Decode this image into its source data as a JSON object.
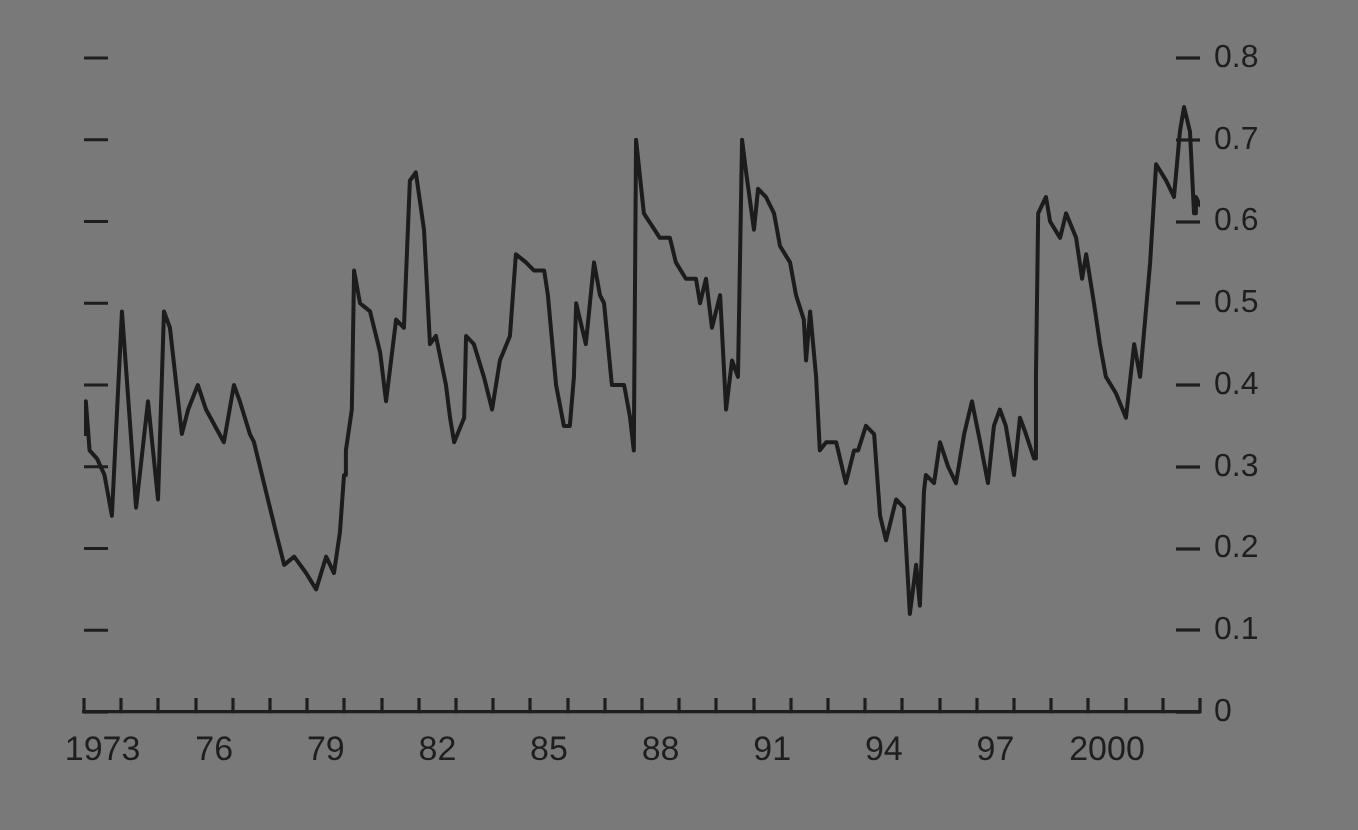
{
  "chart_data": {
    "type": "line",
    "color": "#1c1c1c",
    "x": [
      1972.5,
      1972.55,
      1972.65,
      1972.85,
      1973.05,
      1973.25,
      1973.52,
      1973.9,
      1974.22,
      1974.49,
      1974.65,
      1974.81,
      1975.13,
      1975.3,
      1975.56,
      1975.78,
      1976.26,
      1976.53,
      1976.69,
      1976.96,
      1977.07,
      1977.39,
      1977.66,
      1977.88,
      1978.15,
      1978.47,
      1978.74,
      1979.01,
      1979.22,
      1979.38,
      1979.49,
      1979.54,
      1979.7,
      1979.76,
      1979.92,
      1980.19,
      1980.46,
      1980.62,
      1980.89,
      1981.1,
      1981.26,
      1981.42,
      1981.64,
      1981.8,
      1981.96,
      1982.23,
      1982.34,
      1982.45,
      1982.72,
      1982.77,
      1982.98,
      1983.25,
      1983.47,
      1983.68,
      1983.95,
      1984.11,
      1984.38,
      1984.6,
      1984.87,
      1984.97,
      1985.19,
      1985.4,
      1985.56,
      1985.67,
      1985.73,
      1985.99,
      1986.21,
      1986.37,
      1986.48,
      1986.69,
      1987.02,
      1987.18,
      1987.28,
      1987.34,
      1987.55,
      1987.98,
      1988.25,
      1988.41,
      1988.68,
      1988.95,
      1989.06,
      1989.22,
      1989.38,
      1989.6,
      1989.76,
      1989.92,
      1990.08,
      1990.19,
      1990.3,
      1990.51,
      1990.62,
      1990.83,
      1991.05,
      1991.21,
      1991.48,
      1991.64,
      1991.85,
      1991.91,
      1992.02,
      1992.18,
      1992.28,
      1992.45,
      1992.72,
      1992.98,
      1993.2,
      1993.31,
      1993.52,
      1993.74,
      1993.9,
      1994.06,
      1994.33,
      1994.54,
      1994.7,
      1994.87,
      1994.97,
      1995.08,
      1995.13,
      1995.35,
      1995.51,
      1995.73,
      1995.94,
      1996.16,
      1996.37,
      1996.59,
      1996.8,
      1996.96,
      1997.12,
      1997.28,
      1997.5,
      1997.66,
      1997.82,
      1998.04,
      1998.09,
      1998.15,
      1998.36,
      1998.47,
      1998.74,
      1998.9,
      1999.17,
      1999.33,
      1999.44,
      1999.65,
      1999.81,
      1999.97,
      2000.24,
      2000.51,
      2000.73,
      2000.89,
      2001.16,
      2001.32,
      2001.59,
      2001.8,
      2001.96,
      2002.07,
      2002.23,
      2002.34,
      2002.39,
      2002.5
    ],
    "values": [
      0.34,
      0.38,
      0.32,
      0.31,
      0.29,
      0.24,
      0.49,
      0.25,
      0.38,
      0.26,
      0.49,
      0.47,
      0.34,
      0.37,
      0.4,
      0.37,
      0.33,
      0.4,
      0.38,
      0.34,
      0.33,
      0.27,
      0.22,
      0.18,
      0.19,
      0.17,
      0.15,
      0.19,
      0.17,
      0.22,
      0.29,
      0.32,
      0.37,
      0.54,
      0.5,
      0.49,
      0.44,
      0.38,
      0.48,
      0.47,
      0.65,
      0.66,
      0.59,
      0.45,
      0.46,
      0.4,
      0.36,
      0.33,
      0.36,
      0.46,
      0.45,
      0.41,
      0.37,
      0.43,
      0.46,
      0.56,
      0.55,
      0.54,
      0.54,
      0.51,
      0.4,
      0.35,
      0.35,
      0.41,
      0.5,
      0.45,
      0.55,
      0.51,
      0.5,
      0.4,
      0.4,
      0.36,
      0.32,
      0.7,
      0.61,
      0.58,
      0.58,
      0.55,
      0.53,
      0.53,
      0.5,
      0.53,
      0.47,
      0.51,
      0.37,
      0.43,
      0.41,
      0.7,
      0.66,
      0.59,
      0.64,
      0.63,
      0.61,
      0.57,
      0.55,
      0.51,
      0.48,
      0.43,
      0.49,
      0.41,
      0.32,
      0.33,
      0.33,
      0.28,
      0.32,
      0.32,
      0.35,
      0.34,
      0.24,
      0.21,
      0.26,
      0.25,
      0.12,
      0.18,
      0.13,
      0.27,
      0.29,
      0.28,
      0.33,
      0.3,
      0.28,
      0.34,
      0.38,
      0.33,
      0.28,
      0.35,
      0.37,
      0.35,
      0.29,
      0.36,
      0.34,
      0.31,
      0.41,
      0.61,
      0.63,
      0.6,
      0.58,
      0.61,
      0.58,
      0.53,
      0.56,
      0.5,
      0.45,
      0.41,
      0.39,
      0.36,
      0.45,
      0.41,
      0.55,
      0.67,
      0.65,
      0.63,
      0.71,
      0.74,
      0.71,
      0.61,
      0.63,
      0.62
    ],
    "xlim": [
      1972.5,
      2002.5
    ],
    "xticks": [
      {
        "value": 1972.5,
        "label": null
      },
      1973,
      {
        "value": 1973.5,
        "label": null
      },
      {
        "value": 1974.5,
        "label": null
      },
      {
        "value": 1975.5,
        "label": null
      },
      {
        "value": 1976,
        "label": "76"
      },
      {
        "value": 1976.5,
        "label": null
      },
      {
        "value": 1977.5,
        "label": null
      },
      {
        "value": 1978.5,
        "label": null
      },
      {
        "value": 1979,
        "label": "79"
      },
      {
        "value": 1979.5,
        "label": null
      },
      {
        "value": 1980.5,
        "label": null
      },
      {
        "value": 1981.5,
        "label": null
      },
      {
        "value": 1982,
        "label": "82"
      },
      {
        "value": 1982.5,
        "label": null
      },
      {
        "value": 1983.5,
        "label": null
      },
      {
        "value": 1984.5,
        "label": null
      },
      {
        "value": 1985,
        "label": "85"
      },
      {
        "value": 1985.5,
        "label": null
      },
      {
        "value": 1986.5,
        "label": null
      },
      {
        "value": 1987.5,
        "label": null
      },
      {
        "value": 1988,
        "label": "88"
      },
      {
        "value": 1988.5,
        "label": null
      },
      {
        "value": 1989.5,
        "label": null
      },
      {
        "value": 1990.5,
        "label": null
      },
      {
        "value": 1991,
        "label": "91"
      },
      {
        "value": 1991.5,
        "label": null
      },
      {
        "value": 1992.5,
        "label": null
      },
      {
        "value": 1993.5,
        "label": null
      },
      {
        "value": 1994,
        "label": "94"
      },
      {
        "value": 1994.5,
        "label": null
      },
      {
        "value": 1995.5,
        "label": null
      },
      {
        "value": 1996.5,
        "label": null
      },
      {
        "value": 1997,
        "label": "97"
      },
      {
        "value": 1997.5,
        "label": null
      },
      {
        "value": 1998.5,
        "label": null
      },
      {
        "value": 1999.5,
        "label": null
      },
      2000,
      {
        "value": 2000.5,
        "label": null
      },
      {
        "value": 2001.5,
        "label": null
      },
      {
        "value": 2002.5,
        "label": null
      }
    ],
    "ylim": [
      0,
      0.8
    ],
    "yticks": [
      0,
      0.1,
      0.2,
      0.3,
      0.4,
      0.5,
      0.6,
      0.7,
      0.8
    ]
  }
}
